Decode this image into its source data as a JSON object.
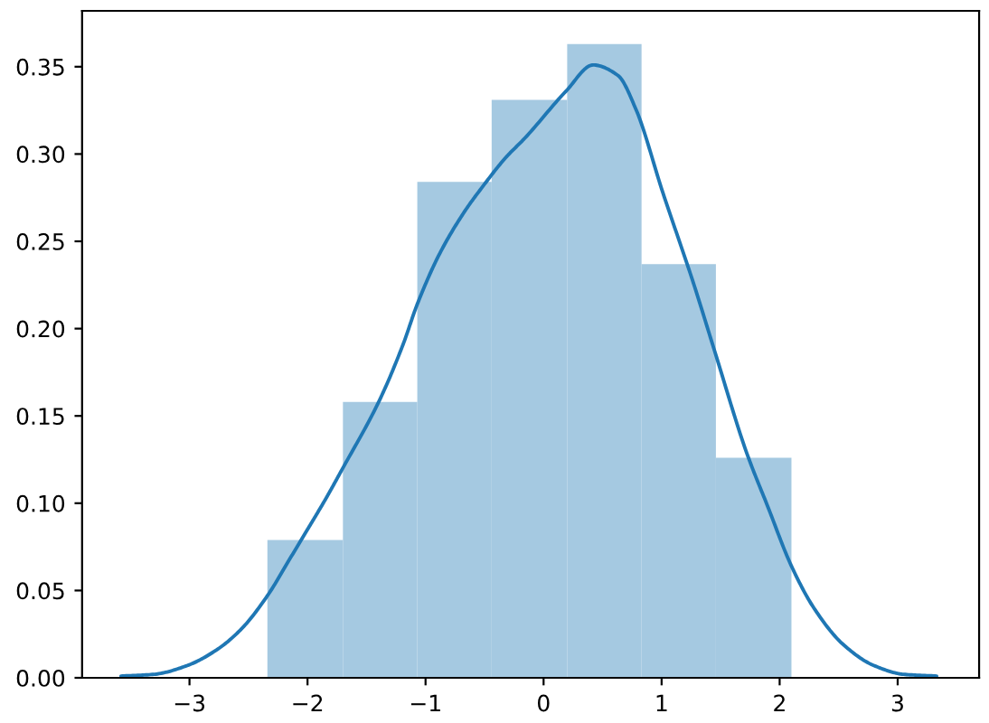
{
  "chart_data": {
    "type": "histogram",
    "series": [
      {
        "color": "#a5c9e1",
        "bins": [
          -2.34,
          -1.7,
          -1.07,
          -0.44,
          0.2,
          0.83,
          1.46,
          2.1
        ],
        "values": [
          0.079,
          0.158,
          0.284,
          0.331,
          0.363,
          0.237,
          0.126
        ]
      },
      {
        "type": "line",
        "color": "#1f77b4",
        "x": [
          -3.58,
          -3.3,
          -3.02,
          -2.77,
          -2.56,
          -2.34,
          -2.16,
          -2.0,
          -1.85,
          -1.71,
          -1.39,
          -1.19,
          -1.07,
          -0.88,
          -0.67,
          -0.52,
          -0.32,
          -0.16,
          0.19,
          0.42,
          0.63,
          0.78,
          1.01,
          1.27,
          1.45,
          1.72,
          1.9,
          2.1,
          2.29,
          2.54,
          2.8,
          3.05,
          3.33
        ],
        "values": [
          0.001,
          0.002,
          0.007,
          0.016,
          0.028,
          0.047,
          0.067,
          0.085,
          0.102,
          0.119,
          0.159,
          0.191,
          0.214,
          0.243,
          0.267,
          0.281,
          0.298,
          0.309,
          0.336,
          0.351,
          0.345,
          0.326,
          0.278,
          0.226,
          0.187,
          0.129,
          0.098,
          0.064,
          0.04,
          0.019,
          0.007,
          0.002,
          0.001
        ]
      }
    ],
    "xlim": [
      -3.91,
      3.69
    ],
    "ylim": [
      0,
      0.382
    ],
    "xticks": [
      -3,
      -2,
      -1,
      0,
      1,
      2,
      3
    ],
    "yticks": [
      {
        "value": 0,
        "label": "0.00"
      },
      {
        "value": 0.05,
        "label": "0.05"
      },
      {
        "value": 0.1,
        "label": "0.10"
      },
      {
        "value": 0.15,
        "label": "0.15"
      },
      {
        "value": 0.2,
        "label": "0.20"
      },
      {
        "value": 0.25,
        "label": "0.25"
      },
      {
        "value": 0.3,
        "label": "0.30"
      },
      {
        "value": 0.35,
        "label": "0.35"
      }
    ]
  }
}
